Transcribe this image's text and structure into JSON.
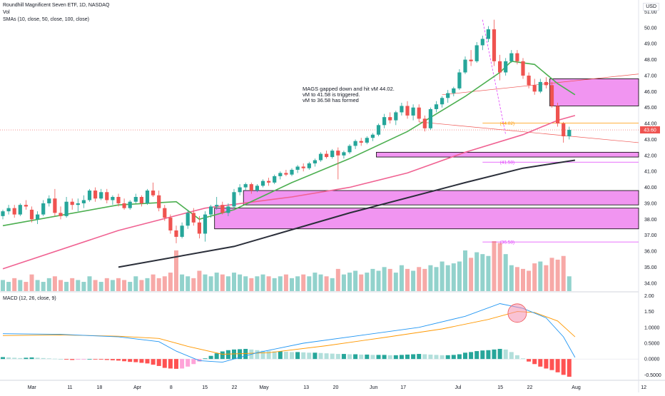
{
  "header": {
    "title": "Roundhill Magnificent Seven ETF, 1D, NASDAQ",
    "vol_label": "Vol",
    "sma_label": "SMAs (10, close, 50, close, 100, close)",
    "macd_label": "MACD (12, 26, close, 9)",
    "currency": "USD"
  },
  "annotation": {
    "line1": "MAGS gapped down and hit vM 44.02.",
    "line2": "vM to 41.58 is triggered.",
    "line3": "vM to 36.58 has formed"
  },
  "colors": {
    "up": "#26a69a",
    "down": "#ef5350",
    "sma10": "#4caf50",
    "sma50": "#f06292",
    "sma100": "#2a2e39",
    "zone_fill": "#ee82ee",
    "macd_line": "#2196f3",
    "signal_line": "#ff9800",
    "level_line": "#e040fb"
  },
  "chart_data": [
    {
      "type": "candlestick",
      "title": "Roundhill Magnificent Seven ETF, 1D, NASDAQ",
      "ylim": [
        33.5,
        51.2
      ],
      "y_ticks": [
        "51.00",
        "50.00",
        "49.00",
        "48.00",
        "47.00",
        "46.00",
        "45.00",
        "44.00",
        "43.00",
        "42.00",
        "41.00",
        "40.00",
        "39.00",
        "38.00",
        "37.00",
        "36.00",
        "35.00",
        "34.00"
      ],
      "x_ticks": [
        "Mar",
        "11",
        "18",
        "Apr",
        "8",
        "15",
        "22",
        "May",
        "13",
        "20",
        "Jun",
        "17",
        "Jul",
        "15",
        "22",
        "Aug",
        "12"
      ],
      "last_price_label": "43.60",
      "last_price": 43.6,
      "candles": [
        [
          38.2,
          38.6,
          38.0,
          38.5
        ],
        [
          38.5,
          38.9,
          38.3,
          38.7
        ],
        [
          38.7,
          38.9,
          38.1,
          38.3
        ],
        [
          38.3,
          39.0,
          38.2,
          38.9
        ],
        [
          38.9,
          39.2,
          38.6,
          38.8
        ],
        [
          38.6,
          38.8,
          37.8,
          38.0
        ],
        [
          38.0,
          38.5,
          37.7,
          38.3
        ],
        [
          38.3,
          39.2,
          38.2,
          39.0
        ],
        [
          39.0,
          39.5,
          38.8,
          39.3
        ],
        [
          39.3,
          39.9,
          38.2,
          38.4
        ],
        [
          38.4,
          38.8,
          38.0,
          38.2
        ],
        [
          38.2,
          39.4,
          38.1,
          39.1
        ],
        [
          39.1,
          39.3,
          38.6,
          38.9
        ],
        [
          38.9,
          39.3,
          38.5,
          39.0
        ],
        [
          39.0,
          39.5,
          38.7,
          39.2
        ],
        [
          39.2,
          39.9,
          39.1,
          39.8
        ],
        [
          39.8,
          40.0,
          39.1,
          39.3
        ],
        [
          39.3,
          39.9,
          39.2,
          39.7
        ],
        [
          39.7,
          39.9,
          39.0,
          39.2
        ],
        [
          39.2,
          39.5,
          38.9,
          39.4
        ],
        [
          39.4,
          39.6,
          38.8,
          39.0
        ],
        [
          39.0,
          39.3,
          38.6,
          38.7
        ],
        [
          38.7,
          39.2,
          38.6,
          39.1
        ],
        [
          39.1,
          39.6,
          39.0,
          39.4
        ],
        [
          39.4,
          39.5,
          38.8,
          39.0
        ],
        [
          39.0,
          39.9,
          38.9,
          39.8
        ],
        [
          39.8,
          40.3,
          39.4,
          39.5
        ],
        [
          39.5,
          39.8,
          38.5,
          38.7
        ],
        [
          38.7,
          38.9,
          37.9,
          38.1
        ],
        [
          38.1,
          38.3,
          37.1,
          37.3
        ],
        [
          37.3,
          37.6,
          36.5,
          36.9
        ],
        [
          36.9,
          37.8,
          36.8,
          37.6
        ],
        [
          37.6,
          38.6,
          37.4,
          38.4
        ],
        [
          38.4,
          38.7,
          37.6,
          37.8
        ],
        [
          37.8,
          38.2,
          36.8,
          37.1
        ],
        [
          37.1,
          38.5,
          36.6,
          38.3
        ],
        [
          38.3,
          38.9,
          38.1,
          38.8
        ],
        [
          38.8,
          39.4,
          38.6,
          38.9
        ],
        [
          38.9,
          39.1,
          38.3,
          38.4
        ],
        [
          38.4,
          39.0,
          38.2,
          38.8
        ],
        [
          38.8,
          39.9,
          38.7,
          39.7
        ],
        [
          39.7,
          40.2,
          39.5,
          40.0
        ],
        [
          40.0,
          40.3,
          39.8,
          40.2
        ],
        [
          40.2,
          40.3,
          39.6,
          39.8
        ],
        [
          39.8,
          40.2,
          39.7,
          40.1
        ],
        [
          40.1,
          40.5,
          40.0,
          40.4
        ],
        [
          40.4,
          40.6,
          40.1,
          40.3
        ],
        [
          40.3,
          40.8,
          40.2,
          40.7
        ],
        [
          40.7,
          41.0,
          40.5,
          40.9
        ],
        [
          40.9,
          41.1,
          40.7,
          40.8
        ],
        [
          40.8,
          41.2,
          40.7,
          41.1
        ],
        [
          41.1,
          41.4,
          40.9,
          41.3
        ],
        [
          41.3,
          41.5,
          41.0,
          41.2
        ],
        [
          41.2,
          41.6,
          41.1,
          41.5
        ],
        [
          41.5,
          41.8,
          41.3,
          41.7
        ],
        [
          41.7,
          42.2,
          41.6,
          42.1
        ],
        [
          42.1,
          42.3,
          41.8,
          41.9
        ],
        [
          41.9,
          42.4,
          41.8,
          42.3
        ],
        [
          42.3,
          42.5,
          40.5,
          42.0
        ],
        [
          42.0,
          42.3,
          41.8,
          42.2
        ],
        [
          42.2,
          42.7,
          42.1,
          42.6
        ],
        [
          42.6,
          43.0,
          42.4,
          42.9
        ],
        [
          42.9,
          43.1,
          42.6,
          42.8
        ],
        [
          42.8,
          43.2,
          42.7,
          43.1
        ],
        [
          43.1,
          43.4,
          42.9,
          43.3
        ],
        [
          43.3,
          44.0,
          43.2,
          43.9
        ],
        [
          43.9,
          44.6,
          43.7,
          44.4
        ],
        [
          44.4,
          44.7,
          44.0,
          44.2
        ],
        [
          44.2,
          44.8,
          43.9,
          44.7
        ],
        [
          44.7,
          45.3,
          44.5,
          45.1
        ],
        [
          45.1,
          45.4,
          44.3,
          44.5
        ],
        [
          44.5,
          45.2,
          44.2,
          45.0
        ],
        [
          45.0,
          45.2,
          44.1,
          44.3
        ],
        [
          44.3,
          44.5,
          43.5,
          43.7
        ],
        [
          43.7,
          45.0,
          43.6,
          44.9
        ],
        [
          44.9,
          45.4,
          44.7,
          45.2
        ],
        [
          45.2,
          45.7,
          45.0,
          45.6
        ],
        [
          45.6,
          46.1,
          45.3,
          45.9
        ],
        [
          45.9,
          46.3,
          45.7,
          46.2
        ],
        [
          46.2,
          47.4,
          46.1,
          47.2
        ],
        [
          47.2,
          48.2,
          47.1,
          48.0
        ],
        [
          48.0,
          48.6,
          47.6,
          47.9
        ],
        [
          47.9,
          49.1,
          47.8,
          48.9
        ],
        [
          48.9,
          49.5,
          48.6,
          49.3
        ],
        [
          49.3,
          50.1,
          49.1,
          49.9
        ],
        [
          49.9,
          50.5,
          47.6,
          47.9
        ],
        [
          47.9,
          48.3,
          46.7,
          47.2
        ],
        [
          47.2,
          48.1,
          47.0,
          47.9
        ],
        [
          47.9,
          48.6,
          47.8,
          48.4
        ],
        [
          48.4,
          48.6,
          47.7,
          47.9
        ],
        [
          47.9,
          48.1,
          46.8,
          47.0
        ],
        [
          47.0,
          47.2,
          46.2,
          46.4
        ],
        [
          46.4,
          46.8,
          45.8,
          46.0
        ],
        [
          46.0,
          46.8,
          45.9,
          46.6
        ],
        [
          46.6,
          46.9,
          46.2,
          46.4
        ],
        [
          46.4,
          46.6,
          45.0,
          45.1
        ],
        [
          45.1,
          45.3,
          43.8,
          44.0
        ],
        [
          44.0,
          44.1,
          42.8,
          43.2
        ],
        [
          43.2,
          43.8,
          43.0,
          43.6
        ]
      ],
      "sma10": [
        [
          0,
          37.6
        ],
        [
          20,
          38.9
        ],
        [
          30,
          39.1
        ],
        [
          34,
          38.0
        ],
        [
          40,
          38.6
        ],
        [
          50,
          40.3
        ],
        [
          60,
          41.8
        ],
        [
          70,
          43.5
        ],
        [
          75,
          44.6
        ],
        [
          80,
          45.7
        ],
        [
          86,
          47.2
        ],
        [
          88,
          47.9
        ],
        [
          92,
          47.7
        ],
        [
          96,
          46.5
        ],
        [
          99,
          45.8
        ]
      ],
      "sma50": [
        [
          0,
          34.9
        ],
        [
          20,
          37.3
        ],
        [
          35,
          38.7
        ],
        [
          50,
          39.4
        ],
        [
          60,
          40.0
        ],
        [
          70,
          40.9
        ],
        [
          80,
          42.2
        ],
        [
          90,
          43.3
        ],
        [
          96,
          44.2
        ],
        [
          99,
          44.5
        ]
      ],
      "sma100": [
        [
          20,
          35.0
        ],
        [
          40,
          36.3
        ],
        [
          60,
          38.4
        ],
        [
          80,
          40.3
        ],
        [
          90,
          41.2
        ],
        [
          99,
          41.7
        ]
      ],
      "zones": [
        {
          "x0": 95,
          "x1": 110,
          "top": 46.8,
          "bottom": 45.1
        },
        {
          "x0": 65,
          "x1": 110,
          "top": 42.2,
          "bottom": 41.9
        },
        {
          "x0": 42,
          "x1": 110,
          "top": 39.8,
          "bottom": 38.9
        },
        {
          "x0": 37,
          "x1": 110,
          "top": 38.7,
          "bottom": 37.4
        }
      ],
      "levels": [
        {
          "label": "(44.02)",
          "value": 44.02
        },
        {
          "label": "(41.58)",
          "value": 41.58
        },
        {
          "label": "(36.58)",
          "value": 36.58
        }
      ],
      "volume": [
        6,
        5,
        7,
        6,
        5,
        9,
        6,
        5,
        7,
        8,
        6,
        5,
        7,
        6,
        5,
        8,
        6,
        5,
        7,
        6,
        7,
        6,
        5,
        8,
        6,
        7,
        9,
        7,
        8,
        10,
        22,
        9,
        8,
        7,
        11,
        9,
        8,
        10,
        9,
        8,
        10,
        9,
        8,
        7,
        8,
        9,
        8,
        7,
        8,
        9,
        7,
        8,
        9,
        8,
        10,
        9,
        8,
        7,
        12,
        9,
        10,
        11,
        9,
        10,
        12,
        11,
        13,
        12,
        10,
        14,
        12,
        11,
        13,
        12,
        14,
        13,
        16,
        14,
        15,
        16,
        22,
        18,
        21,
        20,
        19,
        27,
        26,
        20,
        14,
        13,
        12,
        11,
        15,
        16,
        14,
        18,
        17,
        19,
        8
      ]
    },
    {
      "type": "macd",
      "title": "MACD (12, 26, close, 9)",
      "ylim": [
        -0.65,
        2.1
      ],
      "y_ticks": [
        "2.00",
        "1.50",
        "1.0000",
        "0.5000",
        "0.0000",
        "-0.5000"
      ],
      "macd": [
        [
          0,
          0.8
        ],
        [
          10,
          0.78
        ],
        [
          20,
          0.7
        ],
        [
          27,
          0.55
        ],
        [
          30,
          0.25
        ],
        [
          34,
          -0.05
        ],
        [
          38,
          -0.1
        ],
        [
          44,
          0.2
        ],
        [
          52,
          0.5
        ],
        [
          62,
          0.75
        ],
        [
          72,
          1.0
        ],
        [
          80,
          1.35
        ],
        [
          86,
          1.75
        ],
        [
          90,
          1.6
        ],
        [
          94,
          1.3
        ],
        [
          97,
          0.7
        ],
        [
          99,
          0.05
        ]
      ],
      "signal": [
        [
          0,
          0.74
        ],
        [
          10,
          0.76
        ],
        [
          20,
          0.72
        ],
        [
          27,
          0.65
        ],
        [
          32,
          0.4
        ],
        [
          38,
          0.15
        ],
        [
          46,
          0.2
        ],
        [
          56,
          0.42
        ],
        [
          66,
          0.68
        ],
        [
          76,
          0.95
        ],
        [
          84,
          1.25
        ],
        [
          89,
          1.5
        ],
        [
          92,
          1.47
        ],
        [
          96,
          1.2
        ],
        [
          99,
          0.7
        ]
      ],
      "histogram": [
        0.06,
        0.05,
        0.04,
        0.03,
        0.04,
        0.05,
        0.04,
        0.03,
        0.02,
        0.01,
        0.0,
        -0.02,
        -0.03,
        -0.02,
        -0.01,
        0.0,
        -0.01,
        -0.02,
        -0.03,
        -0.04,
        -0.05,
        -0.07,
        -0.09,
        -0.1,
        -0.12,
        -0.14,
        -0.18,
        -0.22,
        -0.28,
        -0.3,
        -0.31,
        -0.3,
        -0.24,
        -0.16,
        -0.08,
        0.02,
        0.1,
        0.18,
        0.24,
        0.28,
        0.3,
        0.31,
        0.32,
        0.3,
        0.28,
        0.26,
        0.25,
        0.24,
        0.24,
        0.23,
        0.22,
        0.22,
        0.21,
        0.2,
        0.2,
        0.19,
        0.18,
        0.17,
        0.16,
        0.16,
        0.15,
        0.15,
        0.14,
        0.14,
        0.13,
        0.13,
        0.13,
        0.12,
        0.12,
        0.13,
        0.14,
        0.15,
        0.16,
        0.15,
        0.14,
        0.13,
        0.12,
        0.12,
        0.13,
        0.15,
        0.2,
        0.22,
        0.25,
        0.27,
        0.28,
        0.3,
        0.32,
        0.3,
        0.22,
        0.12,
        0.02,
        -0.08,
        -0.16,
        -0.24,
        -0.3,
        -0.35,
        -0.42,
        -0.5,
        -0.56
      ]
    }
  ]
}
